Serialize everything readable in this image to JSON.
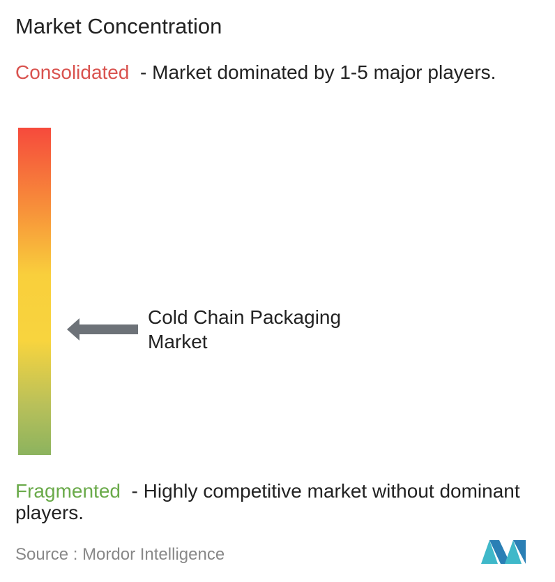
{
  "title": "Market Concentration",
  "consolidated": {
    "label": "Consolidated",
    "description": "- Market dominated by 1-5 major players."
  },
  "marker": {
    "label": "Cold Chain Packaging Market"
  },
  "fragmented": {
    "label": "Fragmented",
    "description": "- Highly competitive market without dominant players."
  },
  "source": {
    "prefix": "Source :",
    "name": "Mordor Intelligence"
  }
}
